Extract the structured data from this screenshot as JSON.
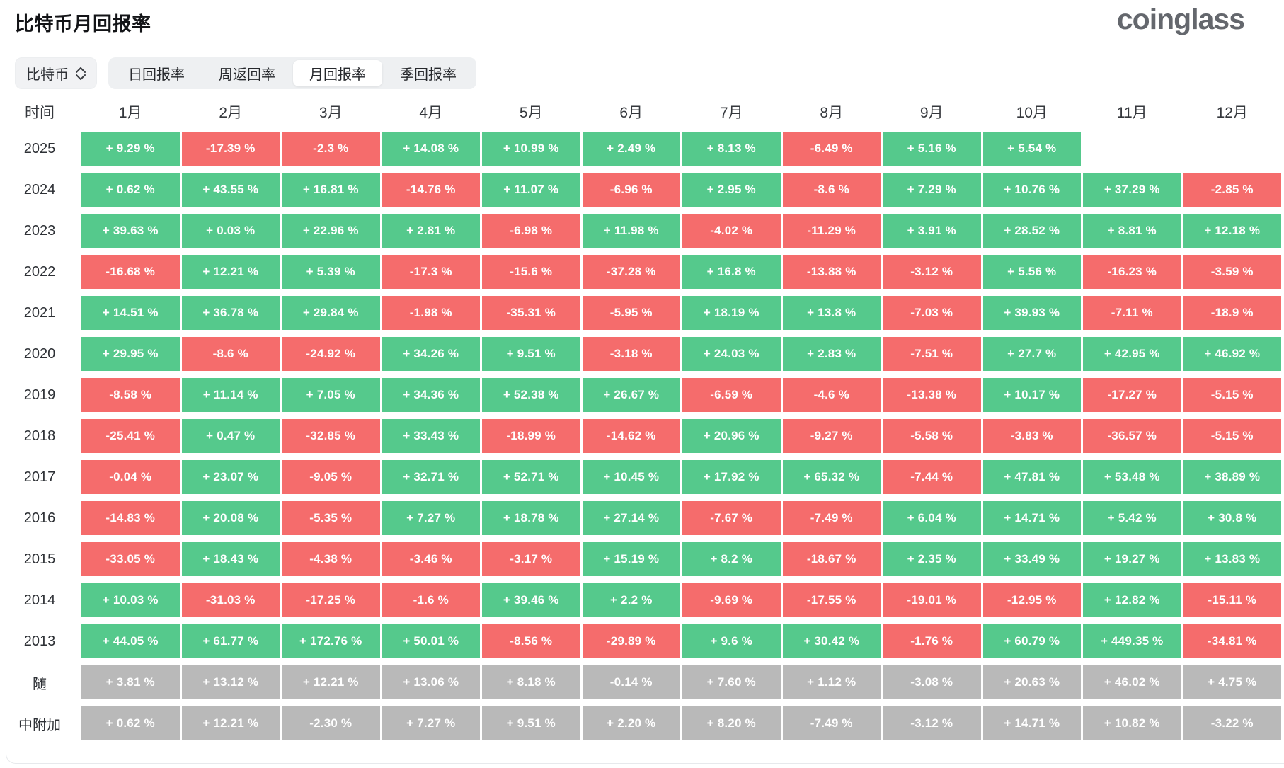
{
  "page": {
    "title": "比特币月回报率",
    "logo_text": "coinglass"
  },
  "controls": {
    "coin_select_label": "比特币",
    "tabs": [
      {
        "label": "日回报率",
        "active": false
      },
      {
        "label": "周返回率",
        "active": false
      },
      {
        "label": "月回报率",
        "active": true
      },
      {
        "label": "季回报率",
        "active": false
      }
    ]
  },
  "chart_data": {
    "type": "heatmap",
    "title": "比特币月回报率",
    "unit": "%",
    "columns": [
      "时间",
      "1月",
      "2月",
      "3月",
      "4月",
      "5月",
      "6月",
      "7月",
      "8月",
      "9月",
      "10月",
      "11月",
      "12月"
    ],
    "colors": {
      "positive": "#55c98c",
      "negative": "#f56c6c",
      "summary": "#b9b9b9"
    },
    "rows": [
      {
        "label": "2025",
        "kind": "year",
        "values": [
          "+ 9.29 %",
          "-17.39 %",
          "-2.3 %",
          "+ 14.08 %",
          "+ 10.99 %",
          "+ 2.49 %",
          "+ 8.13 %",
          "-6.49 %",
          "+ 5.16 %",
          "+ 5.54 %",
          null,
          null
        ]
      },
      {
        "label": "2024",
        "kind": "year",
        "values": [
          "+ 0.62 %",
          "+ 43.55 %",
          "+ 16.81 %",
          "-14.76 %",
          "+ 11.07 %",
          "-6.96 %",
          "+ 2.95 %",
          "-8.6 %",
          "+ 7.29 %",
          "+ 10.76 %",
          "+ 37.29 %",
          "-2.85 %"
        ]
      },
      {
        "label": "2023",
        "kind": "year",
        "values": [
          "+ 39.63 %",
          "+ 0.03 %",
          "+ 22.96 %",
          "+ 2.81 %",
          "-6.98 %",
          "+ 11.98 %",
          "-4.02 %",
          "-11.29 %",
          "+ 3.91 %",
          "+ 28.52 %",
          "+ 8.81 %",
          "+ 12.18 %"
        ]
      },
      {
        "label": "2022",
        "kind": "year",
        "values": [
          "-16.68 %",
          "+ 12.21 %",
          "+ 5.39 %",
          "-17.3 %",
          "-15.6 %",
          "-37.28 %",
          "+ 16.8 %",
          "-13.88 %",
          "-3.12 %",
          "+ 5.56 %",
          "-16.23 %",
          "-3.59 %"
        ]
      },
      {
        "label": "2021",
        "kind": "year",
        "values": [
          "+ 14.51 %",
          "+ 36.78 %",
          "+ 29.84 %",
          "-1.98 %",
          "-35.31 %",
          "-5.95 %",
          "+ 18.19 %",
          "+ 13.8 %",
          "-7.03 %",
          "+ 39.93 %",
          "-7.11 %",
          "-18.9 %"
        ]
      },
      {
        "label": "2020",
        "kind": "year",
        "values": [
          "+ 29.95 %",
          "-8.6 %",
          "-24.92 %",
          "+ 34.26 %",
          "+ 9.51 %",
          "-3.18 %",
          "+ 24.03 %",
          "+ 2.83 %",
          "-7.51 %",
          "+ 27.7 %",
          "+ 42.95 %",
          "+ 46.92 %"
        ]
      },
      {
        "label": "2019",
        "kind": "year",
        "values": [
          "-8.58 %",
          "+ 11.14 %",
          "+ 7.05 %",
          "+ 34.36 %",
          "+ 52.38 %",
          "+ 26.67 %",
          "-6.59 %",
          "-4.6 %",
          "-13.38 %",
          "+ 10.17 %",
          "-17.27 %",
          "-5.15 %"
        ]
      },
      {
        "label": "2018",
        "kind": "year",
        "values": [
          "-25.41 %",
          "+ 0.47 %",
          "-32.85 %",
          "+ 33.43 %",
          "-18.99 %",
          "-14.62 %",
          "+ 20.96 %",
          "-9.27 %",
          "-5.58 %",
          "-3.83 %",
          "-36.57 %",
          "-5.15 %"
        ]
      },
      {
        "label": "2017",
        "kind": "year",
        "values": [
          "-0.04 %",
          "+ 23.07 %",
          "-9.05 %",
          "+ 32.71 %",
          "+ 52.71 %",
          "+ 10.45 %",
          "+ 17.92 %",
          "+ 65.32 %",
          "-7.44 %",
          "+ 47.81 %",
          "+ 53.48 %",
          "+ 38.89 %"
        ]
      },
      {
        "label": "2016",
        "kind": "year",
        "values": [
          "-14.83 %",
          "+ 20.08 %",
          "-5.35 %",
          "+ 7.27 %",
          "+ 18.78 %",
          "+ 27.14 %",
          "-7.67 %",
          "-7.49 %",
          "+ 6.04 %",
          "+ 14.71 %",
          "+ 5.42 %",
          "+ 30.8 %"
        ]
      },
      {
        "label": "2015",
        "kind": "year",
        "values": [
          "-33.05 %",
          "+ 18.43 %",
          "-4.38 %",
          "-3.46 %",
          "-3.17 %",
          "+ 15.19 %",
          "+ 8.2 %",
          "-18.67 %",
          "+ 2.35 %",
          "+ 33.49 %",
          "+ 19.27 %",
          "+ 13.83 %"
        ]
      },
      {
        "label": "2014",
        "kind": "year",
        "values": [
          "+ 10.03 %",
          "-31.03 %",
          "-17.25 %",
          "-1.6 %",
          "+ 39.46 %",
          "+ 2.2 %",
          "-9.69 %",
          "-17.55 %",
          "-19.01 %",
          "-12.95 %",
          "+ 12.82 %",
          "-15.11 %"
        ]
      },
      {
        "label": "2013",
        "kind": "year",
        "values": [
          "+ 44.05 %",
          "+ 61.77 %",
          "+ 172.76 %",
          "+ 50.01 %",
          "-8.56 %",
          "-29.89 %",
          "+ 9.6 %",
          "+ 30.42 %",
          "-1.76 %",
          "+ 60.79 %",
          "+ 449.35 %",
          "-34.81 %"
        ]
      },
      {
        "label": "随",
        "kind": "summary",
        "values": [
          "+ 3.81 %",
          "+ 13.12 %",
          "+ 12.21 %",
          "+ 13.06 %",
          "+ 8.18 %",
          "-0.14 %",
          "+ 7.60 %",
          "+ 1.12 %",
          "-3.08 %",
          "+ 20.63 %",
          "+ 46.02 %",
          "+ 4.75 %"
        ]
      },
      {
        "label": "中附加",
        "kind": "summary",
        "values": [
          "+ 0.62 %",
          "+ 12.21 %",
          "-2.30 %",
          "+ 7.27 %",
          "+ 9.51 %",
          "+ 2.20 %",
          "+ 8.20 %",
          "-7.49 %",
          "-3.12 %",
          "+ 14.71 %",
          "+ 10.82 %",
          "-3.22 %"
        ]
      }
    ]
  }
}
